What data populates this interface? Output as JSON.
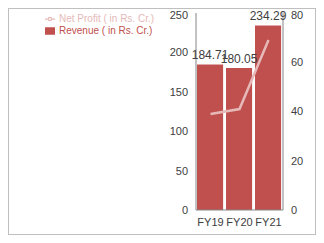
{
  "chart_data": {
    "type": "bar",
    "categories": [
      "FY19",
      "FY20",
      "FY21"
    ],
    "series": [
      {
        "name": "Revenue ( in Rs. Cr.)",
        "type": "bar",
        "color": "#c0504d",
        "values": [
          184.71,
          180.05,
          234.29
        ],
        "data_labels": true
      },
      {
        "name": "Net Profit ( in Rs. Cr.)",
        "type": "line",
        "color": "#e6b9b8",
        "marker": "none",
        "axis": "y2",
        "values": [
          39,
          41,
          69
        ]
      }
    ],
    "ylim": [
      0,
      250
    ],
    "yticks": [
      0,
      50,
      100,
      150,
      200,
      250
    ],
    "y2lim": [
      0,
      80
    ],
    "y2ticks": [
      0,
      20,
      40,
      60,
      80
    ],
    "grid": false,
    "legend": "upper left"
  }
}
